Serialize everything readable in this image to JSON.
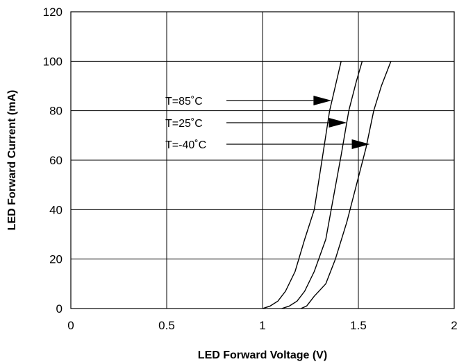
{
  "chart_data": {
    "type": "line",
    "title": "",
    "xlabel": "LED Forward Voltage (V)",
    "ylabel": "LED Forward Current (mA)",
    "xlim": [
      0,
      2
    ],
    "ylim": [
      0,
      120
    ],
    "x_ticks": [
      0,
      0.5,
      1,
      1.5,
      2
    ],
    "x_tick_labels": [
      "0",
      "0.5",
      "1",
      "1.5",
      "2"
    ],
    "y_ticks": [
      0,
      20,
      40,
      60,
      80,
      100,
      120
    ],
    "y_tick_labels": [
      "0",
      "20",
      "40",
      "60",
      "80",
      "100",
      "120"
    ],
    "grid": true,
    "series": [
      {
        "name": "T=85˚C",
        "x": [
          1.0,
          1.04,
          1.08,
          1.12,
          1.17,
          1.22,
          1.27,
          1.31,
          1.35,
          1.38,
          1.41
        ],
        "y": [
          0,
          1,
          3,
          7,
          15,
          28,
          40,
          60,
          80,
          90,
          100
        ]
      },
      {
        "name": "T=25˚C",
        "x": [
          1.1,
          1.14,
          1.18,
          1.22,
          1.27,
          1.33,
          1.37,
          1.41,
          1.45,
          1.49,
          1.52
        ],
        "y": [
          0,
          1,
          3,
          7,
          15,
          28,
          45,
          62,
          80,
          92,
          100
        ]
      },
      {
        "name": "T=-40˚C",
        "x": [
          1.2,
          1.23,
          1.27,
          1.33,
          1.38,
          1.44,
          1.49,
          1.54,
          1.58,
          1.62,
          1.67
        ],
        "y": [
          0,
          1,
          5,
          10,
          20,
          35,
          50,
          65,
          80,
          90,
          100
        ]
      }
    ],
    "annotations": [
      {
        "text": "T=85˚C",
        "arrow_to": [
          1.36,
          84
        ]
      },
      {
        "text": "T=25˚C",
        "arrow_to": [
          1.44,
          75
        ]
      },
      {
        "text": "T=-40˚C",
        "arrow_to": [
          1.56,
          67
        ]
      }
    ]
  }
}
